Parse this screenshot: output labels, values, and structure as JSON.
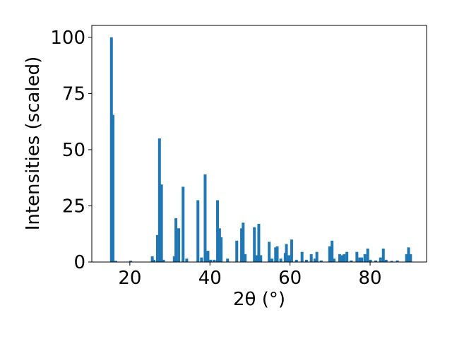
{
  "chart_data": {
    "type": "bar",
    "xlabel": "2θ (°)",
    "ylabel": "Intensities (scaled)",
    "x": [
      15.4,
      15.8,
      16.5,
      20.2,
      25.6,
      26.0,
      26.9,
      27.4,
      27.9,
      28.4,
      31.1,
      31.5,
      32.2,
      33.3,
      34.2,
      37.0,
      37.9,
      38.8,
      39.5,
      40.2,
      41.1,
      41.9,
      42.4,
      42.8,
      44.4,
      46.7,
      47.9,
      48.3,
      48.8,
      51.1,
      51.7,
      52.2,
      52.7,
      54.8,
      55.5,
      56.4,
      56.8,
      57.7,
      58.8,
      59.1,
      59.7,
      60.4,
      61.6,
      63.0,
      64.1,
      65.3,
      66.2,
      66.7,
      67.8,
      69.9,
      70.5,
      71.0,
      72.4,
      73.1,
      73.5,
      74.2,
      75.3,
      76.7,
      77.4,
      77.9,
      78.7,
      79.4,
      80.1,
      81.4,
      82.6,
      83.3,
      84.0,
      85.4,
      86.8,
      89.1,
      89.6,
      90.1
    ],
    "values": [
      100,
      65.5,
      0.5,
      0.6,
      2.5,
      1,
      12,
      55,
      34.5,
      1,
      2.5,
      19.5,
      15,
      33.5,
      1.5,
      27.5,
      2,
      39,
      5,
      1,
      1,
      27.5,
      15,
      11,
      1.5,
      9.5,
      15,
      17.5,
      3.5,
      15.5,
      3,
      17,
      3,
      9,
      1.5,
      6.5,
      7,
      1.5,
      4,
      8,
      3,
      10,
      1,
      4.5,
      1,
      3.5,
      1.5,
      4.5,
      0.7,
      7,
      9.5,
      1.5,
      3.5,
      3,
      3.5,
      4.5,
      0.7,
      4.5,
      2,
      2,
      3.5,
      6,
      1,
      0.7,
      2,
      6,
      1,
      0.5,
      0.7,
      3.5,
      6.5,
      3.5
    ],
    "color": "#1f77b4",
    "xlim": [
      10.5,
      94.1
    ],
    "xticks": [
      20,
      40,
      60,
      80
    ],
    "ylim": [
      0,
      105.3
    ],
    "yticks": [
      0,
      25,
      50,
      75,
      100
    ]
  }
}
